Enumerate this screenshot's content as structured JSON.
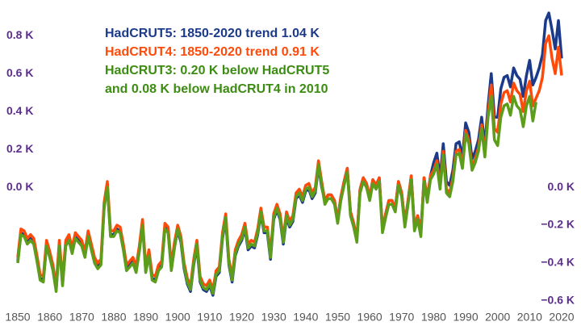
{
  "chart_data": {
    "type": "line",
    "annotations": [
      {
        "lines": [
          "HadCRUT5: 1850-2020 trend 1.04 K"
        ],
        "color": "#1b3a8a"
      },
      {
        "lines": [
          "HadCRUT4: 1850-2020 trend 0.91 K"
        ],
        "color": "#ff4a0a"
      },
      {
        "lines": [
          "HadCRUT3: 0.20 K below HadCRUT5",
          "and 0.08 K below HadCRUT4 in 2010"
        ],
        "color": "#3c8c12"
      }
    ],
    "x": [
      1850,
      1851,
      1852,
      1853,
      1854,
      1855,
      1856,
      1857,
      1858,
      1859,
      1860,
      1861,
      1862,
      1863,
      1864,
      1865,
      1866,
      1867,
      1868,
      1869,
      1870,
      1871,
      1872,
      1873,
      1874,
      1875,
      1876,
      1877,
      1878,
      1879,
      1880,
      1881,
      1882,
      1883,
      1884,
      1885,
      1886,
      1887,
      1888,
      1889,
      1890,
      1891,
      1892,
      1893,
      1894,
      1895,
      1896,
      1897,
      1898,
      1899,
      1900,
      1901,
      1902,
      1903,
      1904,
      1905,
      1906,
      1907,
      1908,
      1909,
      1910,
      1911,
      1912,
      1913,
      1914,
      1915,
      1916,
      1917,
      1918,
      1919,
      1920,
      1921,
      1922,
      1923,
      1924,
      1925,
      1926,
      1927,
      1928,
      1929,
      1930,
      1931,
      1932,
      1933,
      1934,
      1935,
      1936,
      1937,
      1938,
      1939,
      1940,
      1941,
      1942,
      1943,
      1944,
      1945,
      1946,
      1947,
      1948,
      1949,
      1950,
      1951,
      1952,
      1953,
      1954,
      1955,
      1956,
      1957,
      1958,
      1959,
      1960,
      1961,
      1962,
      1963,
      1964,
      1965,
      1966,
      1967,
      1968,
      1969,
      1970,
      1971,
      1972,
      1973,
      1974,
      1975,
      1976,
      1977,
      1978,
      1979,
      1980,
      1981,
      1982,
      1983,
      1984,
      1985,
      1986,
      1987,
      1988,
      1989,
      1990,
      1991,
      1992,
      1993,
      1994,
      1995,
      1996,
      1997,
      1998,
      1999,
      2000,
      2001,
      2002,
      2003,
      2004,
      2005,
      2006,
      2007,
      2008,
      2009,
      2010,
      2011,
      2012,
      2013,
      2014,
      2015,
      2016,
      2017,
      2018,
      2019,
      2020
    ],
    "series": [
      {
        "name": "HadCRUT5",
        "color": "#1b3a8a",
        "values": [
          -0.39,
          -0.24,
          -0.25,
          -0.29,
          -0.27,
          -0.29,
          -0.38,
          -0.48,
          -0.49,
          -0.3,
          -0.36,
          -0.43,
          -0.54,
          -0.3,
          -0.51,
          -0.3,
          -0.27,
          -0.34,
          -0.26,
          -0.28,
          -0.3,
          -0.36,
          -0.25,
          -0.32,
          -0.39,
          -0.42,
          -0.4,
          -0.1,
          0.01,
          -0.25,
          -0.25,
          -0.22,
          -0.23,
          -0.32,
          -0.43,
          -0.41,
          -0.39,
          -0.44,
          -0.33,
          -0.19,
          -0.44,
          -0.35,
          -0.48,
          -0.49,
          -0.43,
          -0.41,
          -0.21,
          -0.23,
          -0.43,
          -0.31,
          -0.23,
          -0.29,
          -0.43,
          -0.51,
          -0.55,
          -0.41,
          -0.31,
          -0.5,
          -0.54,
          -0.55,
          -0.52,
          -0.57,
          -0.47,
          -0.45,
          -0.27,
          -0.17,
          -0.41,
          -0.5,
          -0.36,
          -0.31,
          -0.28,
          -0.22,
          -0.33,
          -0.31,
          -0.32,
          -0.25,
          -0.14,
          -0.24,
          -0.24,
          -0.38,
          -0.17,
          -0.12,
          -0.17,
          -0.3,
          -0.16,
          -0.21,
          -0.18,
          -0.06,
          -0.04,
          -0.08,
          -0.02,
          -0.01,
          -0.06,
          -0.03,
          0.11,
          0.0,
          -0.07,
          -0.04,
          -0.04,
          -0.07,
          -0.17,
          -0.05,
          0.03,
          0.1,
          -0.13,
          -0.19,
          -0.27,
          -0.01,
          0.05,
          0.02,
          -0.05,
          0.04,
          0.01,
          0.05,
          -0.22,
          -0.14,
          -0.07,
          -0.07,
          -0.11,
          0.03,
          -0.03,
          -0.19,
          -0.07,
          0.06,
          -0.21,
          -0.15,
          -0.24,
          0.05,
          -0.06,
          0.06,
          0.13,
          0.18,
          0.05,
          0.23,
          0.03,
          0.01,
          0.09,
          0.23,
          0.24,
          0.16,
          0.34,
          0.29,
          0.15,
          0.19,
          0.25,
          0.37,
          0.22,
          0.43,
          0.6,
          0.37,
          0.37,
          0.52,
          0.58,
          0.59,
          0.53,
          0.63,
          0.59,
          0.57,
          0.48,
          0.59,
          0.67,
          0.54,
          0.58,
          0.63,
          0.7,
          0.88,
          0.92,
          0.83,
          0.73,
          0.88,
          0.68
        ]
      },
      {
        "name": "HadCRUT4",
        "color": "#ff4a0a",
        "values": [
          -0.37,
          -0.22,
          -0.23,
          -0.27,
          -0.25,
          -0.27,
          -0.36,
          -0.46,
          -0.47,
          -0.28,
          -0.34,
          -0.41,
          -0.52,
          -0.28,
          -0.49,
          -0.28,
          -0.25,
          -0.32,
          -0.24,
          -0.26,
          -0.28,
          -0.34,
          -0.23,
          -0.3,
          -0.37,
          -0.4,
          -0.38,
          -0.08,
          0.03,
          -0.23,
          -0.23,
          -0.2,
          -0.21,
          -0.3,
          -0.41,
          -0.39,
          -0.37,
          -0.42,
          -0.31,
          -0.17,
          -0.42,
          -0.33,
          -0.46,
          -0.47,
          -0.41,
          -0.39,
          -0.19,
          -0.21,
          -0.41,
          -0.29,
          -0.2,
          -0.26,
          -0.4,
          -0.48,
          -0.52,
          -0.38,
          -0.28,
          -0.47,
          -0.51,
          -0.52,
          -0.49,
          -0.54,
          -0.44,
          -0.42,
          -0.24,
          -0.14,
          -0.38,
          -0.47,
          -0.33,
          -0.28,
          -0.25,
          -0.19,
          -0.3,
          -0.28,
          -0.29,
          -0.22,
          -0.11,
          -0.21,
          -0.21,
          -0.35,
          -0.14,
          -0.09,
          -0.14,
          -0.27,
          -0.13,
          -0.18,
          -0.15,
          -0.03,
          -0.01,
          -0.05,
          0.01,
          0.02,
          -0.03,
          0.0,
          0.14,
          0.03,
          -0.07,
          -0.04,
          -0.04,
          -0.07,
          -0.17,
          -0.05,
          0.03,
          0.1,
          -0.13,
          -0.19,
          -0.27,
          -0.01,
          0.05,
          0.02,
          -0.05,
          0.04,
          0.01,
          0.05,
          -0.22,
          -0.14,
          -0.07,
          -0.07,
          -0.11,
          0.03,
          -0.03,
          -0.19,
          -0.07,
          0.06,
          -0.21,
          -0.15,
          -0.24,
          0.05,
          -0.06,
          0.06,
          0.09,
          0.14,
          0.01,
          0.19,
          -0.01,
          -0.03,
          0.05,
          0.19,
          0.2,
          0.12,
          0.3,
          0.25,
          0.11,
          0.15,
          0.21,
          0.33,
          0.18,
          0.39,
          0.54,
          0.31,
          0.29,
          0.44,
          0.5,
          0.51,
          0.45,
          0.55,
          0.51,
          0.49,
          0.4,
          0.51,
          0.56,
          0.43,
          0.47,
          0.51,
          0.58,
          0.76,
          0.8,
          0.68,
          0.6,
          0.74,
          0.59
        ]
      },
      {
        "name": "HadCRUT3",
        "color": "#5c9e1c",
        "values": [
          -0.4,
          -0.25,
          -0.26,
          -0.3,
          -0.28,
          -0.3,
          -0.39,
          -0.49,
          -0.5,
          -0.31,
          -0.37,
          -0.44,
          -0.55,
          -0.31,
          -0.52,
          -0.31,
          -0.28,
          -0.35,
          -0.27,
          -0.29,
          -0.31,
          -0.37,
          -0.26,
          -0.33,
          -0.4,
          -0.43,
          -0.41,
          -0.11,
          0.0,
          -0.26,
          -0.26,
          -0.23,
          -0.24,
          -0.33,
          -0.44,
          -0.42,
          -0.4,
          -0.45,
          -0.34,
          -0.2,
          -0.45,
          -0.36,
          -0.49,
          -0.5,
          -0.44,
          -0.42,
          -0.22,
          -0.24,
          -0.44,
          -0.32,
          -0.22,
          -0.28,
          -0.42,
          -0.5,
          -0.54,
          -0.4,
          -0.3,
          -0.49,
          -0.53,
          -0.54,
          -0.51,
          -0.56,
          -0.46,
          -0.44,
          -0.26,
          -0.16,
          -0.4,
          -0.49,
          -0.35,
          -0.3,
          -0.27,
          -0.21,
          -0.32,
          -0.3,
          -0.31,
          -0.24,
          -0.13,
          -0.23,
          -0.23,
          -0.37,
          -0.16,
          -0.11,
          -0.16,
          -0.29,
          -0.15,
          -0.2,
          -0.17,
          -0.05,
          -0.03,
          -0.07,
          -0.01,
          0.0,
          -0.05,
          -0.02,
          0.12,
          0.01,
          -0.09,
          -0.06,
          -0.06,
          -0.09,
          -0.19,
          -0.07,
          0.01,
          0.08,
          -0.15,
          -0.21,
          -0.29,
          -0.03,
          0.03,
          0.0,
          -0.07,
          0.02,
          -0.01,
          0.03,
          -0.24,
          -0.16,
          -0.09,
          -0.09,
          -0.13,
          0.01,
          -0.05,
          -0.21,
          -0.09,
          0.04,
          -0.23,
          -0.17,
          -0.26,
          0.03,
          -0.08,
          0.04,
          0.07,
          0.12,
          -0.01,
          0.17,
          -0.03,
          -0.05,
          0.03,
          0.17,
          0.18,
          0.1,
          0.28,
          0.23,
          0.09,
          0.13,
          0.19,
          0.31,
          0.16,
          0.37,
          0.48,
          0.25,
          0.22,
          0.37,
          0.43,
          0.44,
          0.38,
          0.48,
          0.43,
          0.41,
          0.32,
          0.43,
          0.48,
          0.35,
          0.45,
          null,
          null,
          null,
          null,
          null,
          null,
          null,
          null
        ]
      }
    ],
    "xlim": [
      1850,
      2020
    ],
    "xticks": [
      1850,
      1860,
      1870,
      1880,
      1890,
      1900,
      1910,
      1920,
      1930,
      1940,
      1950,
      1960,
      1970,
      1980,
      1990,
      2000,
      2010,
      2020
    ],
    "ylim": [
      -0.63,
      0.98
    ],
    "yticks": [
      {
        "value": 0.8,
        "label": "0.8 K"
      },
      {
        "value": 0.6,
        "label": "0.6 K"
      },
      {
        "value": 0.4,
        "label": "0.4 K"
      },
      {
        "value": 0.2,
        "label": "0.2 K"
      },
      {
        "value": 0,
        "label": "0.0 K"
      }
    ],
    "y2lim": [
      -0.63,
      0.98
    ],
    "y2ticks": [
      {
        "value": 0,
        "label": "0.0 K"
      },
      {
        "value": -0.2,
        "label": "−0.2 K"
      },
      {
        "value": -0.4,
        "label": "−0.4 K"
      },
      {
        "value": -0.6,
        "label": "−0.6 K"
      }
    ],
    "tick_label_color": "#5b2d8e"
  }
}
